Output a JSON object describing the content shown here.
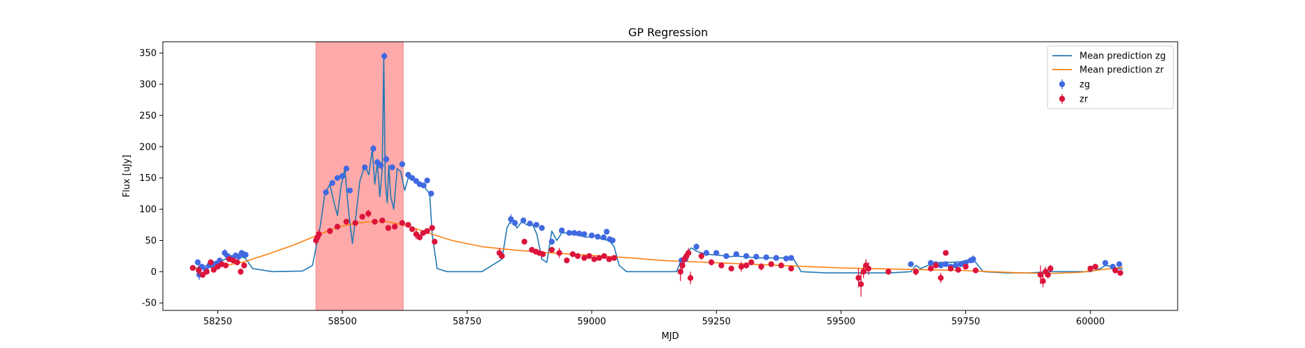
{
  "chart_data": {
    "type": "line",
    "title": "GP Regression",
    "xlabel": "MJD",
    "ylabel": "Flux [uJy]",
    "xlim": [
      58140,
      60175
    ],
    "ylim": [
      -62,
      368
    ],
    "xticks": [
      58250,
      58500,
      58750,
      59000,
      59250,
      59500,
      59750,
      60000
    ],
    "yticks": [
      -50,
      0,
      50,
      100,
      150,
      200,
      250,
      300,
      350
    ],
    "grid": false,
    "legend_position": "upper right",
    "highlight_span": {
      "x0": 58447,
      "x1": 58622,
      "color": "#ffaaaa"
    },
    "colors": {
      "mean_zg": "#1f77b4",
      "mean_zr": "#ff7f0e",
      "zg": "#4169e1",
      "zr": "#dc143c"
    },
    "series": [
      {
        "name": "Mean prediction zg",
        "kind": "line",
        "x": [
          58205,
          58215,
          58230,
          58250,
          58265,
          58280,
          58295,
          58305,
          58320,
          58360,
          58420,
          58440,
          58455,
          58465,
          58475,
          58482,
          58490,
          58497,
          58505,
          58512,
          58520,
          58528,
          58535,
          58545,
          58553,
          58560,
          58565,
          58570,
          58575,
          58580,
          58583,
          58586,
          58590,
          58593,
          58597,
          58603,
          58610,
          58617,
          58625,
          58632,
          58640,
          58650,
          58660,
          58670,
          58675,
          58680,
          58690,
          58710,
          58780,
          58820,
          58830,
          58840,
          58850,
          58860,
          58870,
          58880,
          58890,
          58900,
          58910,
          58920,
          58930,
          58940,
          58950,
          58960,
          58975,
          58990,
          59005,
          59020,
          59035,
          59045,
          59055,
          59070,
          59110,
          59170,
          59180,
          59190,
          59200,
          59210,
          59220,
          59230,
          59245,
          59260,
          59275,
          59290,
          59305,
          59320,
          59335,
          59350,
          59365,
          59380,
          59395,
          59405,
          59420,
          59470,
          59530,
          59600,
          59640,
          59650,
          59660,
          59680,
          59700,
          59720,
          59740,
          59760,
          59770,
          59785,
          59830,
          59880,
          59920,
          59960,
          60000,
          60020,
          60030,
          60045,
          60055,
          60065
        ],
        "values": [
          5,
          8,
          10,
          14,
          20,
          22,
          24,
          22,
          5,
          0,
          1,
          10,
          70,
          125,
          140,
          115,
          90,
          135,
          165,
          100,
          45,
          95,
          145,
          170,
          155,
          195,
          140,
          175,
          120,
          165,
          345,
          145,
          110,
          170,
          120,
          100,
          165,
          160,
          130,
          150,
          148,
          145,
          140,
          130,
          125,
          60,
          5,
          0,
          0,
          20,
          70,
          85,
          70,
          80,
          75,
          78,
          60,
          20,
          15,
          65,
          50,
          62,
          62,
          60,
          58,
          55,
          58,
          52,
          50,
          40,
          10,
          0,
          0,
          0,
          20,
          30,
          38,
          33,
          30,
          28,
          27,
          26,
          24,
          25,
          24,
          23,
          22,
          22,
          22,
          22,
          22,
          20,
          0,
          -2,
          -2,
          -2,
          0,
          10,
          5,
          12,
          15,
          15,
          16,
          20,
          15,
          0,
          -2,
          -2,
          0,
          0,
          0,
          5,
          10,
          8,
          5,
          4
        ]
      },
      {
        "name": "Mean prediction zr",
        "kind": "line",
        "x": [
          58205,
          58250,
          58300,
          58350,
          58400,
          58440,
          58470,
          58500,
          58530,
          58560,
          58590,
          58620,
          58650,
          58680,
          58720,
          58780,
          58840,
          58900,
          58960,
          59020,
          59080,
          59140,
          59200,
          59260,
          59320,
          59380,
          59440,
          59500,
          59560,
          59620,
          59680,
          59740,
          59800,
          59860,
          59920,
          59980,
          60040,
          60065
        ],
        "values": [
          5,
          8,
          15,
          28,
          42,
          55,
          65,
          73,
          78,
          80,
          80,
          75,
          68,
          60,
          50,
          40,
          35,
          31,
          28,
          25,
          22,
          18,
          16,
          14,
          12,
          10,
          8,
          6,
          5,
          4,
          3,
          2,
          0,
          -2,
          -3,
          -1,
          5,
          7
        ]
      },
      {
        "name": "zg",
        "kind": "errorbar",
        "x": [
          58210,
          58213,
          58218,
          58226,
          58233,
          58240,
          58247,
          58254,
          58264,
          58270,
          58278,
          58286,
          58292,
          58298,
          58302,
          58306,
          58467,
          58480,
          58490,
          58500,
          58508,
          58515,
          58545,
          58562,
          58570,
          58577,
          58584,
          58588,
          58600,
          58620,
          58632,
          58640,
          58648,
          58655,
          58663,
          58670,
          58678,
          58838,
          58846,
          58863,
          58876,
          58889,
          58900,
          58920,
          58940,
          58955,
          58965,
          58975,
          58985,
          59000,
          59012,
          59024,
          59030,
          59036,
          59042,
          59180,
          59188,
          59210,
          59230,
          59250,
          59270,
          59290,
          59310,
          59330,
          59350,
          59370,
          59390,
          59400,
          59640,
          59680,
          59690,
          59700,
          59710,
          59720,
          59730,
          59740,
          59750,
          59760,
          59765,
          60030,
          60045,
          60058
        ],
        "values": [
          15,
          -5,
          8,
          3,
          10,
          12,
          13,
          18,
          30,
          25,
          22,
          26,
          24,
          30,
          28,
          27,
          127,
          142,
          150,
          153,
          165,
          130,
          167,
          197,
          175,
          170,
          345,
          180,
          167,
          172,
          155,
          150,
          145,
          140,
          138,
          146,
          125,
          84,
          78,
          82,
          77,
          75,
          70,
          48,
          66,
          62,
          62,
          61,
          60,
          58,
          56,
          55,
          64,
          52,
          50,
          18,
          20,
          40,
          30,
          30,
          25,
          28,
          25,
          24,
          23,
          22,
          21,
          22,
          12,
          14,
          12,
          10,
          12,
          8,
          10,
          12,
          14,
          18,
          20,
          14,
          8,
          12
        ],
        "errors": [
          5,
          8,
          4,
          4,
          4,
          4,
          4,
          4,
          6,
          4,
          4,
          4,
          4,
          4,
          4,
          4,
          5,
          4,
          4,
          4,
          4,
          4,
          5,
          6,
          6,
          6,
          6,
          6,
          5,
          5,
          4,
          4,
          4,
          4,
          4,
          4,
          4,
          8,
          5,
          4,
          4,
          4,
          4,
          4,
          4,
          4,
          4,
          4,
          4,
          4,
          4,
          4,
          4,
          4,
          4,
          4,
          4,
          5,
          5,
          4,
          4,
          4,
          4,
          4,
          4,
          4,
          4,
          4,
          4,
          4,
          4,
          4,
          4,
          4,
          4,
          4,
          4,
          4,
          6,
          4,
          4,
          4
        ]
      },
      {
        "name": "zr",
        "kind": "errorbar",
        "x": [
          58200,
          58212,
          58220,
          58228,
          58236,
          58242,
          58250,
          58258,
          58266,
          58273,
          58281,
          58289,
          58296,
          58303,
          58447,
          58450,
          58453,
          58475,
          58490,
          58508,
          58526,
          58540,
          58552,
          58565,
          58580,
          58592,
          58605,
          58620,
          58632,
          58640,
          58648,
          58655,
          58662,
          58670,
          58680,
          58685,
          58815,
          58820,
          58865,
          58880,
          58888,
          58895,
          58902,
          58920,
          58935,
          58950,
          58962,
          58972,
          58985,
          58995,
          59005,
          59015,
          59025,
          59035,
          59045,
          59178,
          59182,
          59186,
          59190,
          59194,
          59198,
          59220,
          59240,
          59260,
          59280,
          59300,
          59310,
          59320,
          59340,
          59360,
          59380,
          59400,
          59535,
          59540,
          59545,
          59550,
          59555,
          59595,
          59650,
          59680,
          59690,
          59700,
          59710,
          59720,
          59735,
          59750,
          59770,
          59900,
          59905,
          59910,
          59915,
          59920,
          60000,
          60010,
          60050,
          60060
        ],
        "values": [
          6,
          2,
          -5,
          0,
          15,
          3,
          8,
          12,
          10,
          20,
          18,
          15,
          0,
          10,
          50,
          55,
          60,
          65,
          72,
          80,
          78,
          88,
          93,
          80,
          82,
          70,
          72,
          78,
          75,
          68,
          60,
          55,
          62,
          65,
          70,
          48,
          30,
          25,
          48,
          35,
          32,
          30,
          28,
          35,
          30,
          18,
          28,
          25,
          22,
          25,
          20,
          22,
          25,
          20,
          22,
          0,
          10,
          20,
          25,
          30,
          -10,
          25,
          15,
          10,
          5,
          8,
          10,
          15,
          8,
          12,
          10,
          5,
          -10,
          -20,
          0,
          10,
          5,
          0,
          0,
          5,
          10,
          -10,
          30,
          5,
          3,
          8,
          2,
          -5,
          -15,
          0,
          -5,
          5,
          5,
          8,
          2,
          -2
        ],
        "errors": [
          4,
          8,
          5,
          4,
          5,
          4,
          4,
          4,
          4,
          4,
          4,
          4,
          5,
          4,
          8,
          8,
          8,
          5,
          4,
          4,
          4,
          4,
          6,
          4,
          4,
          4,
          4,
          4,
          4,
          4,
          8,
          5,
          4,
          4,
          4,
          4,
          8,
          4,
          4,
          4,
          4,
          4,
          4,
          4,
          8,
          4,
          4,
          4,
          4,
          4,
          4,
          4,
          4,
          4,
          4,
          15,
          12,
          8,
          8,
          8,
          10,
          6,
          5,
          4,
          4,
          8,
          4,
          4,
          6,
          4,
          4,
          4,
          15,
          20,
          10,
          10,
          10,
          5,
          6,
          4,
          4,
          8,
          4,
          4,
          4,
          4,
          4,
          15,
          10,
          8,
          6,
          6,
          4,
          4,
          4,
          4
        ]
      }
    ]
  }
}
